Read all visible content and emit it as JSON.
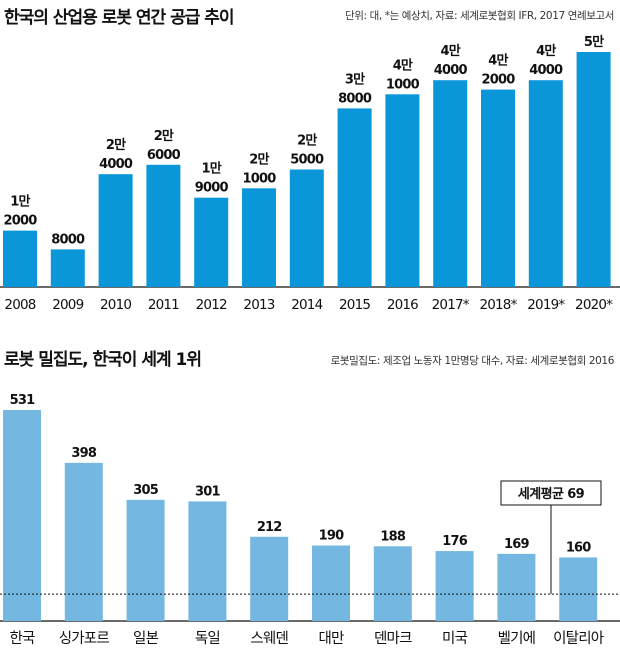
{
  "chart_data": [
    {
      "type": "bar",
      "title": "한국의 산업용 로봇 연간 공급 추이",
      "note": "단위: 대, *는 예상치, 자료: 세계로봇협회 IFR, 2017 연례보고서",
      "categories": [
        "2008",
        "2009",
        "2010",
        "2011",
        "2012",
        "2013",
        "2014",
        "2015",
        "2016",
        "2017*",
        "2018*",
        "2019*",
        "2020*"
      ],
      "values": [
        12000,
        8000,
        24000,
        26000,
        19000,
        21000,
        25000,
        38000,
        41000,
        44000,
        42000,
        44000,
        50000
      ],
      "labels": [
        [
          "1만",
          "2000"
        ],
        [
          "8000"
        ],
        [
          "2만",
          "4000"
        ],
        [
          "2만",
          "6000"
        ],
        [
          "1만",
          "9000"
        ],
        [
          "2만",
          "1000"
        ],
        [
          "2만",
          "5000"
        ],
        [
          "3만",
          "8000"
        ],
        [
          "4만",
          "1000"
        ],
        [
          "4만",
          "4000"
        ],
        [
          "4만",
          "2000"
        ],
        [
          "4만",
          "4000"
        ],
        [
          "5만"
        ]
      ],
      "ylim": [
        0,
        50000
      ],
      "color": "#0a96d8"
    },
    {
      "type": "bar",
      "title": "로봇 밀집도, 한국이 세계 1위",
      "note": "로봇밀집도: 제조업 노동자 1만명당 대수, 자료: 세계로봇협회 2016",
      "categories": [
        "한국",
        "싱가포르",
        "일본",
        "독일",
        "스웨덴",
        "대만",
        "덴마크",
        "미국",
        "벨기에",
        "이탈리아"
      ],
      "values": [
        531,
        398,
        305,
        301,
        212,
        190,
        188,
        176,
        169,
        160
      ],
      "ylim": [
        0,
        531
      ],
      "average": {
        "label": "세계평균 69",
        "value": 69
      },
      "color": "#74b7e1"
    }
  ]
}
